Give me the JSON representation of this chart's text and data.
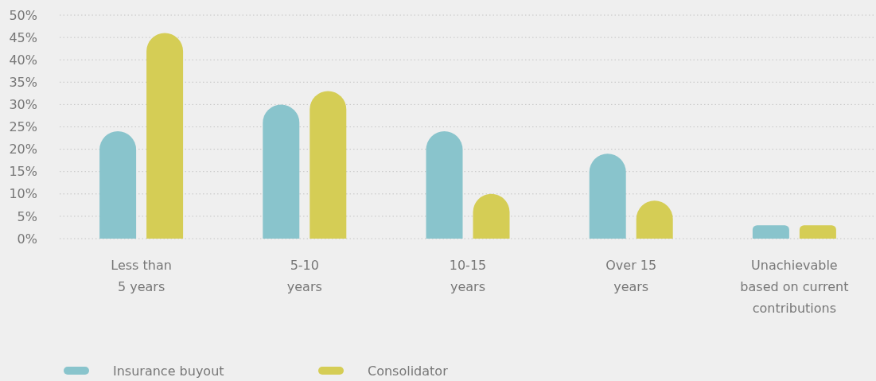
{
  "chart_data": {
    "type": "bar",
    "categories": [
      "Less than\n5 years",
      "5-10\nyears",
      "10-15\nyears",
      "Over 15\nyears",
      "Unachievable\nbased on current\ncontributions"
    ],
    "series": [
      {
        "name": "Insurance buyout",
        "color": "#89c4cc",
        "values": [
          24,
          30,
          24,
          19,
          3
        ]
      },
      {
        "name": "Consolidator",
        "color": "#d5cd55",
        "values": [
          46,
          33,
          10,
          8.5,
          3
        ]
      }
    ],
    "ylim": [
      0,
      50
    ],
    "yticks": [
      {
        "value": 0,
        "label": "0%"
      },
      {
        "value": 5,
        "label": "5%"
      },
      {
        "value": 10,
        "label": "10%"
      },
      {
        "value": 15,
        "label": "15%"
      },
      {
        "value": 20,
        "label": "20%"
      },
      {
        "value": 25,
        "label": "25%"
      },
      {
        "value": 30,
        "label": "30%"
      },
      {
        "value": 35,
        "label": "35%"
      },
      {
        "value": 40,
        "label": "40%"
      },
      {
        "value": 45,
        "label": "45%"
      },
      {
        "value": 50,
        "label": "50%"
      }
    ],
    "grid": "y",
    "legend": "bottom left"
  }
}
